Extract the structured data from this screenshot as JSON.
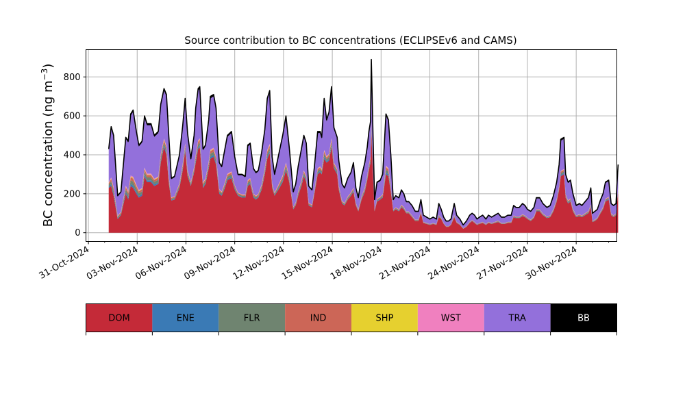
{
  "chart_data": {
    "type": "area",
    "title": "Source contribution to BC concentrations (ECLIPSEv6 and CAMS)",
    "ylabel_main": "BC concentration (ng m",
    "ylabel_sup": "−3",
    "ylabel_close": ")",
    "xlabel": "",
    "stacked": true,
    "grid": true,
    "x_tick_labels": [
      "31-Oct-2024",
      "03-Nov-2024",
      "06-Nov-2024",
      "09-Nov-2024",
      "12-Nov-2024",
      "15-Nov-2024",
      "18-Nov-2024",
      "21-Nov-2024",
      "24-Nov-2024",
      "27-Nov-2024",
      "30-Nov-2024"
    ],
    "x_tick_days": [
      0,
      3,
      6,
      9,
      12,
      15,
      18,
      21,
      24,
      27,
      30
    ],
    "xlim_days": [
      -0.15,
      32.5
    ],
    "y_ticks": [
      0,
      200,
      400,
      600,
      800
    ],
    "ylim": [
      -45,
      940
    ],
    "series_order": [
      "DOM",
      "ENE",
      "FLR",
      "IND",
      "SHP",
      "WST",
      "TRA",
      "BB"
    ],
    "colors": {
      "DOM": "#c42a38",
      "ENE": "#3a7ab5",
      "FLR": "#6f8470",
      "IND": "#cc6657",
      "SHP": "#e6d02f",
      "WST": "#f080bf",
      "TRA": "#9370db",
      "BB": "#000000"
    },
    "legend": [
      {
        "name": "DOM",
        "color": "#c42a38",
        "text_color": "#000000"
      },
      {
        "name": "ENE",
        "color": "#3a7ab5",
        "text_color": "#000000"
      },
      {
        "name": "FLR",
        "color": "#6f8470",
        "text_color": "#000000"
      },
      {
        "name": "IND",
        "color": "#cc6657",
        "text_color": "#000000"
      },
      {
        "name": "SHP",
        "color": "#e6d02f",
        "text_color": "#000000"
      },
      {
        "name": "WST",
        "color": "#f080bf",
        "text_color": "#000000"
      },
      {
        "name": "TRA",
        "color": "#9370db",
        "text_color": "#000000"
      },
      {
        "name": "BB",
        "color": "#000000",
        "text_color": "#ffffff"
      }
    ],
    "legend_placement": "below chart",
    "total_keypoints": [
      [
        1.25,
        430
      ],
      [
        1.4,
        545
      ],
      [
        1.55,
        500
      ],
      [
        1.8,
        190
      ],
      [
        2.0,
        210
      ],
      [
        2.3,
        490
      ],
      [
        2.45,
        470
      ],
      [
        2.6,
        610
      ],
      [
        2.75,
        630
      ],
      [
        2.95,
        520
      ],
      [
        3.1,
        450
      ],
      [
        3.3,
        470
      ],
      [
        3.45,
        600
      ],
      [
        3.6,
        560
      ],
      [
        3.85,
        560
      ],
      [
        4.05,
        500
      ],
      [
        4.3,
        520
      ],
      [
        4.45,
        660
      ],
      [
        4.65,
        740
      ],
      [
        4.8,
        710
      ],
      [
        4.95,
        490
      ],
      [
        5.1,
        280
      ],
      [
        5.3,
        290
      ],
      [
        5.6,
        400
      ],
      [
        5.8,
        550
      ],
      [
        5.95,
        690
      ],
      [
        6.1,
        510
      ],
      [
        6.3,
        380
      ],
      [
        6.5,
        500
      ],
      [
        6.6,
        640
      ],
      [
        6.75,
        740
      ],
      [
        6.85,
        750
      ],
      [
        7.05,
        430
      ],
      [
        7.2,
        450
      ],
      [
        7.4,
        580
      ],
      [
        7.5,
        700
      ],
      [
        7.7,
        710
      ],
      [
        7.85,
        640
      ],
      [
        8.05,
        360
      ],
      [
        8.2,
        340
      ],
      [
        8.35,
        410
      ],
      [
        8.55,
        500
      ],
      [
        8.8,
        520
      ],
      [
        9.0,
        390
      ],
      [
        9.2,
        300
      ],
      [
        9.45,
        300
      ],
      [
        9.65,
        290
      ],
      [
        9.8,
        450
      ],
      [
        9.95,
        460
      ],
      [
        10.15,
        330
      ],
      [
        10.3,
        310
      ],
      [
        10.45,
        320
      ],
      [
        10.65,
        410
      ],
      [
        10.85,
        530
      ],
      [
        11.0,
        690
      ],
      [
        11.15,
        730
      ],
      [
        11.3,
        390
      ],
      [
        11.45,
        300
      ],
      [
        11.75,
        420
      ],
      [
        11.95,
        500
      ],
      [
        12.15,
        600
      ],
      [
        12.35,
        440
      ],
      [
        12.6,
        210
      ],
      [
        12.75,
        250
      ],
      [
        12.9,
        340
      ],
      [
        13.1,
        430
      ],
      [
        13.25,
        500
      ],
      [
        13.4,
        460
      ],
      [
        13.55,
        240
      ],
      [
        13.75,
        220
      ],
      [
        13.9,
        340
      ],
      [
        14.1,
        520
      ],
      [
        14.25,
        520
      ],
      [
        14.35,
        490
      ],
      [
        14.5,
        690
      ],
      [
        14.65,
        580
      ],
      [
        14.8,
        620
      ],
      [
        14.95,
        750
      ],
      [
        15.1,
        540
      ],
      [
        15.3,
        490
      ],
      [
        15.4,
        370
      ],
      [
        15.6,
        250
      ],
      [
        15.75,
        230
      ],
      [
        15.95,
        280
      ],
      [
        16.15,
        310
      ],
      [
        16.3,
        360
      ],
      [
        16.45,
        230
      ],
      [
        16.6,
        180
      ],
      [
        16.8,
        290
      ],
      [
        17.0,
        360
      ],
      [
        17.15,
        440
      ],
      [
        17.25,
        520
      ],
      [
        17.35,
        570
      ],
      [
        17.4,
        890
      ],
      [
        17.5,
        520
      ],
      [
        17.6,
        170
      ],
      [
        17.75,
        260
      ],
      [
        17.95,
        270
      ],
      [
        18.1,
        300
      ],
      [
        18.3,
        610
      ],
      [
        18.45,
        580
      ],
      [
        18.6,
        400
      ],
      [
        18.75,
        170
      ],
      [
        18.9,
        190
      ],
      [
        19.1,
        180
      ],
      [
        19.25,
        220
      ],
      [
        19.4,
        200
      ],
      [
        19.55,
        160
      ],
      [
        19.7,
        160
      ],
      [
        19.9,
        140
      ],
      [
        20.1,
        110
      ],
      [
        20.3,
        110
      ],
      [
        20.45,
        170
      ],
      [
        20.6,
        90
      ],
      [
        20.8,
        80
      ],
      [
        21.0,
        70
      ],
      [
        21.2,
        80
      ],
      [
        21.4,
        70
      ],
      [
        21.55,
        150
      ],
      [
        21.7,
        120
      ],
      [
        21.85,
        80
      ],
      [
        22.0,
        60
      ],
      [
        22.15,
        60
      ],
      [
        22.3,
        70
      ],
      [
        22.5,
        150
      ],
      [
        22.65,
        90
      ],
      [
        22.85,
        70
      ],
      [
        23.05,
        40
      ],
      [
        23.25,
        60
      ],
      [
        23.45,
        90
      ],
      [
        23.6,
        100
      ],
      [
        23.75,
        90
      ],
      [
        23.9,
        70
      ],
      [
        24.05,
        80
      ],
      [
        24.25,
        90
      ],
      [
        24.45,
        70
      ],
      [
        24.6,
        90
      ],
      [
        24.8,
        80
      ],
      [
        25.0,
        90
      ],
      [
        25.2,
        100
      ],
      [
        25.4,
        80
      ],
      [
        25.6,
        80
      ],
      [
        25.8,
        90
      ],
      [
        26.0,
        90
      ],
      [
        26.15,
        140
      ],
      [
        26.3,
        130
      ],
      [
        26.5,
        130
      ],
      [
        26.7,
        150
      ],
      [
        26.85,
        140
      ],
      [
        27.0,
        120
      ],
      [
        27.2,
        110
      ],
      [
        27.4,
        130
      ],
      [
        27.55,
        180
      ],
      [
        27.75,
        180
      ],
      [
        27.95,
        150
      ],
      [
        28.2,
        130
      ],
      [
        28.4,
        140
      ],
      [
        28.6,
        190
      ],
      [
        28.8,
        260
      ],
      [
        28.95,
        350
      ],
      [
        29.05,
        480
      ],
      [
        29.25,
        490
      ],
      [
        29.35,
        300
      ],
      [
        29.5,
        260
      ],
      [
        29.65,
        270
      ],
      [
        29.8,
        200
      ],
      [
        30.0,
        140
      ],
      [
        30.2,
        150
      ],
      [
        30.35,
        140
      ],
      [
        30.55,
        160
      ],
      [
        30.75,
        180
      ],
      [
        30.9,
        230
      ],
      [
        31.0,
        100
      ],
      [
        31.15,
        110
      ],
      [
        31.3,
        120
      ],
      [
        31.5,
        170
      ],
      [
        31.65,
        200
      ],
      [
        31.8,
        260
      ],
      [
        32.0,
        270
      ],
      [
        32.15,
        150
      ],
      [
        32.3,
        140
      ],
      [
        32.45,
        150
      ],
      [
        32.5,
        240
      ],
      [
        32.58,
        350
      ]
    ],
    "dom_fraction": 0.5,
    "tra_fraction_of_total": 0.42,
    "dom_keypoints": [
      [
        1.25,
        230
      ],
      [
        1.4,
        240
      ],
      [
        1.55,
        190
      ],
      [
        1.8,
        70
      ],
      [
        2.0,
        90
      ],
      [
        2.3,
        200
      ],
      [
        2.45,
        170
      ],
      [
        2.6,
        240
      ],
      [
        2.75,
        230
      ],
      [
        2.95,
        200
      ],
      [
        3.1,
        180
      ],
      [
        3.3,
        190
      ],
      [
        3.45,
        290
      ],
      [
        3.6,
        260
      ],
      [
        3.85,
        260
      ],
      [
        4.05,
        240
      ],
      [
        4.3,
        250
      ],
      [
        4.45,
        360
      ],
      [
        4.65,
        440
      ],
      [
        4.8,
        400
      ],
      [
        4.95,
        250
      ],
      [
        5.1,
        165
      ],
      [
        5.3,
        170
      ],
      [
        5.6,
        230
      ],
      [
        5.8,
        320
      ],
      [
        5.95,
        420
      ],
      [
        6.1,
        290
      ],
      [
        6.3,
        240
      ],
      [
        6.5,
        310
      ],
      [
        6.6,
        360
      ],
      [
        6.75,
        430
      ],
      [
        6.85,
        440
      ],
      [
        7.05,
        230
      ],
      [
        7.2,
        250
      ],
      [
        7.4,
        330
      ],
      [
        7.5,
        380
      ],
      [
        7.7,
        390
      ],
      [
        7.85,
        350
      ],
      [
        8.05,
        200
      ],
      [
        8.2,
        190
      ],
      [
        8.35,
        220
      ],
      [
        8.55,
        270
      ],
      [
        8.8,
        280
      ],
      [
        9.0,
        220
      ],
      [
        9.2,
        190
      ],
      [
        9.45,
        180
      ],
      [
        9.65,
        180
      ],
      [
        9.8,
        240
      ],
      [
        9.95,
        250
      ],
      [
        10.15,
        180
      ],
      [
        10.3,
        170
      ],
      [
        10.45,
        180
      ],
      [
        10.65,
        220
      ],
      [
        10.85,
        300
      ],
      [
        11.0,
        380
      ],
      [
        11.15,
        410
      ],
      [
        11.3,
        230
      ],
      [
        11.45,
        190
      ],
      [
        11.75,
        230
      ],
      [
        11.95,
        260
      ],
      [
        12.15,
        320
      ],
      [
        12.35,
        260
      ],
      [
        12.6,
        120
      ],
      [
        12.75,
        140
      ],
      [
        12.9,
        190
      ],
      [
        13.1,
        240
      ],
      [
        13.25,
        290
      ],
      [
        13.4,
        260
      ],
      [
        13.55,
        140
      ],
      [
        13.75,
        130
      ],
      [
        13.9,
        200
      ],
      [
        14.1,
        300
      ],
      [
        14.25,
        310
      ],
      [
        14.35,
        300
      ],
      [
        14.5,
        380
      ],
      [
        14.65,
        360
      ],
      [
        14.8,
        370
      ],
      [
        14.95,
        440
      ],
      [
        15.1,
        330
      ],
      [
        15.3,
        300
      ],
      [
        15.4,
        220
      ],
      [
        15.6,
        150
      ],
      [
        15.75,
        140
      ],
      [
        15.95,
        170
      ],
      [
        16.15,
        190
      ],
      [
        16.3,
        210
      ],
      [
        16.45,
        140
      ],
      [
        16.6,
        110
      ],
      [
        16.8,
        170
      ],
      [
        17.0,
        210
      ],
      [
        17.15,
        270
      ],
      [
        17.25,
        320
      ],
      [
        17.35,
        360
      ],
      [
        17.4,
        520
      ],
      [
        17.5,
        300
      ],
      [
        17.6,
        110
      ],
      [
        17.75,
        160
      ],
      [
        17.95,
        170
      ],
      [
        18.1,
        180
      ],
      [
        18.3,
        300
      ],
      [
        18.45,
        290
      ],
      [
        18.6,
        210
      ],
      [
        18.75,
        110
      ],
      [
        18.9,
        120
      ],
      [
        19.1,
        110
      ],
      [
        19.25,
        130
      ],
      [
        19.4,
        120
      ],
      [
        19.55,
        100
      ],
      [
        19.7,
        100
      ],
      [
        19.9,
        80
      ],
      [
        20.1,
        60
      ],
      [
        20.3,
        60
      ],
      [
        20.45,
        100
      ],
      [
        20.6,
        50
      ],
      [
        20.8,
        45
      ],
      [
        21.0,
        40
      ],
      [
        21.2,
        45
      ],
      [
        21.4,
        40
      ],
      [
        21.55,
        80
      ],
      [
        21.7,
        70
      ],
      [
        21.85,
        45
      ],
      [
        22.0,
        30
      ],
      [
        22.15,
        30
      ],
      [
        22.3,
        40
      ],
      [
        22.5,
        80
      ],
      [
        22.65,
        50
      ],
      [
        22.85,
        40
      ],
      [
        23.05,
        20
      ],
      [
        23.25,
        30
      ],
      [
        23.45,
        50
      ],
      [
        23.6,
        60
      ],
      [
        23.75,
        50
      ],
      [
        23.9,
        40
      ],
      [
        24.05,
        45
      ],
      [
        24.25,
        50
      ],
      [
        24.45,
        40
      ],
      [
        24.6,
        50
      ],
      [
        24.8,
        45
      ],
      [
        25.0,
        50
      ],
      [
        25.2,
        55
      ],
      [
        25.4,
        45
      ],
      [
        25.6,
        45
      ],
      [
        25.8,
        50
      ],
      [
        26.0,
        50
      ],
      [
        26.15,
        80
      ],
      [
        26.3,
        75
      ],
      [
        26.5,
        75
      ],
      [
        26.7,
        85
      ],
      [
        26.85,
        80
      ],
      [
        27.0,
        70
      ],
      [
        27.2,
        60
      ],
      [
        27.4,
        75
      ],
      [
        27.55,
        110
      ],
      [
        27.75,
        110
      ],
      [
        27.95,
        90
      ],
      [
        28.2,
        75
      ],
      [
        28.4,
        80
      ],
      [
        28.6,
        110
      ],
      [
        28.8,
        160
      ],
      [
        28.95,
        220
      ],
      [
        29.05,
        290
      ],
      [
        29.25,
        300
      ],
      [
        29.35,
        180
      ],
      [
        29.5,
        150
      ],
      [
        29.65,
        160
      ],
      [
        29.8,
        110
      ],
      [
        30.0,
        80
      ],
      [
        30.2,
        85
      ],
      [
        30.35,
        80
      ],
      [
        30.55,
        90
      ],
      [
        30.75,
        100
      ],
      [
        30.9,
        130
      ],
      [
        31.0,
        55
      ],
      [
        31.15,
        60
      ],
      [
        31.3,
        70
      ],
      [
        31.5,
        100
      ],
      [
        31.65,
        120
      ],
      [
        31.8,
        160
      ],
      [
        32.0,
        170
      ],
      [
        32.15,
        90
      ],
      [
        32.3,
        80
      ],
      [
        32.45,
        90
      ],
      [
        32.5,
        140
      ],
      [
        32.58,
        210
      ]
    ]
  }
}
